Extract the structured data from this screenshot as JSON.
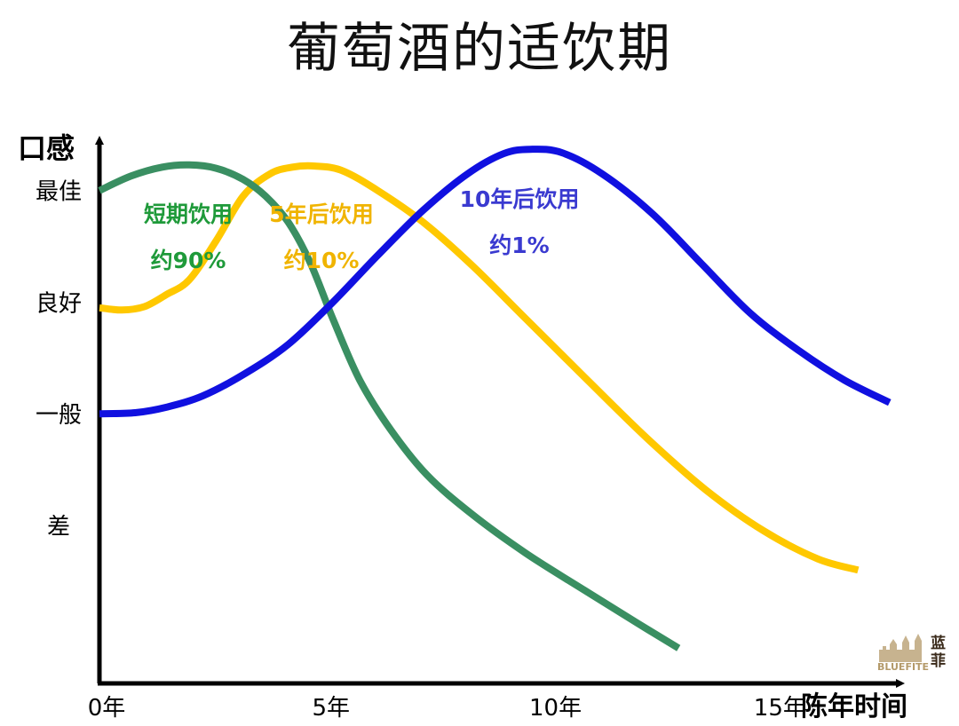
{
  "chart_data": {
    "type": "line",
    "title": "葡萄酒的适饮期",
    "xlabel": "陈年时间",
    "ylabel": "口感",
    "xlim": [
      0,
      18
    ],
    "ylim": [
      -1.4,
      3.3
    ],
    "x_ticks": [
      {
        "value": 0,
        "label": "0年"
      },
      {
        "value": 5,
        "label": "5年"
      },
      {
        "value": 10,
        "label": "10年"
      },
      {
        "value": 15,
        "label": "15年"
      }
    ],
    "y_ticks": [
      {
        "value": 3,
        "label": "最佳"
      },
      {
        "value": 2,
        "label": "良好"
      },
      {
        "value": 1,
        "label": "一般"
      },
      {
        "value": 0,
        "label": "差"
      }
    ],
    "grid": false,
    "legend": "none",
    "series": [
      {
        "name": "短期饮用",
        "share": "约90%",
        "color": "#3a8f62",
        "label_color": "#1f9a3a",
        "x": [
          0,
          0.7,
          1.4,
          2.0,
          2.6,
          3.2,
          3.7,
          4.2,
          4.7,
          5.2,
          5.8,
          6.5,
          7.3,
          8.3,
          9.5,
          10.8,
          12.0,
          12.9
        ],
        "y": [
          3.0,
          3.13,
          3.21,
          3.23,
          3.2,
          3.1,
          2.95,
          2.72,
          2.35,
          1.85,
          1.3,
          0.85,
          0.45,
          0.1,
          -0.25,
          -0.58,
          -0.88,
          -1.1
        ]
      },
      {
        "name": "5年后饮用",
        "share": "约10%",
        "color": "#ffc800",
        "label_color": "#f0b400",
        "x": [
          0,
          0.5,
          1.0,
          1.5,
          2.0,
          2.6,
          3.2,
          3.8,
          4.3,
          4.8,
          5.4,
          6.2,
          7.2,
          8.3,
          9.5,
          10.8,
          12.2,
          13.5,
          14.8,
          16.0,
          16.9
        ],
        "y": [
          1.95,
          1.93,
          1.96,
          2.07,
          2.2,
          2.55,
          2.95,
          3.15,
          3.21,
          3.22,
          3.18,
          3.0,
          2.72,
          2.33,
          1.85,
          1.33,
          0.78,
          0.32,
          -0.05,
          -0.3,
          -0.4
        ]
      },
      {
        "name": "10年后饮用",
        "share": "约1%",
        "color": "#1010e0",
        "label_color": "#3a3ad0",
        "x": [
          0,
          0.8,
          1.5,
          2.3,
          3.2,
          4.2,
          5.2,
          6.2,
          7.2,
          8.2,
          9.0,
          9.6,
          10.3,
          11.2,
          12.3,
          13.4,
          14.5,
          15.6,
          16.6,
          17.6
        ],
        "y": [
          1.0,
          1.01,
          1.06,
          1.16,
          1.35,
          1.62,
          2.0,
          2.42,
          2.82,
          3.15,
          3.33,
          3.37,
          3.34,
          3.15,
          2.8,
          2.35,
          1.9,
          1.56,
          1.3,
          1.1
        ]
      }
    ]
  },
  "logo": {
    "text_cn_top": "蓝",
    "text_cn_bottom": "菲",
    "text_en": "BLUEFITE"
  }
}
